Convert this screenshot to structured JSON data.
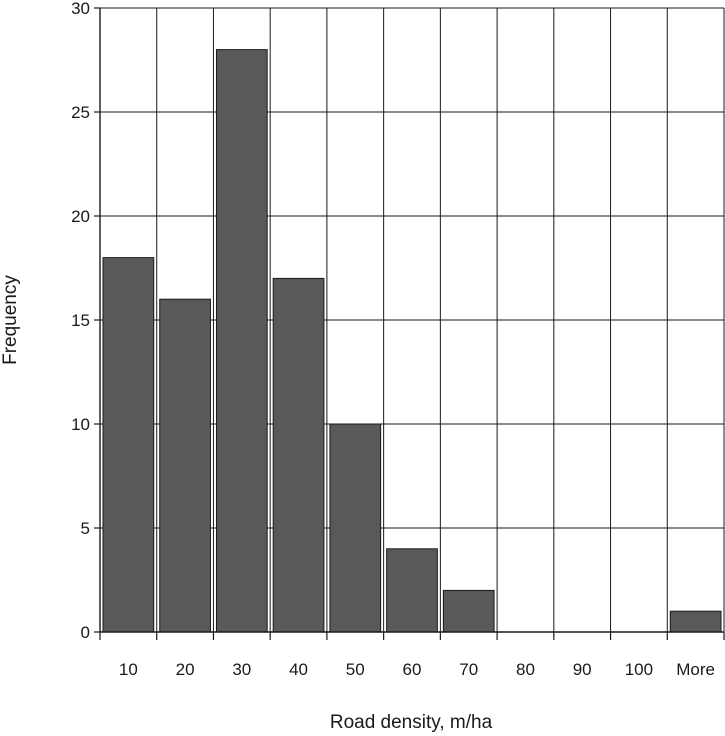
{
  "chart_data": {
    "type": "bar",
    "title": "",
    "xlabel": "Road density, m/ha",
    "ylabel": "Frequency",
    "categories": [
      "10",
      "20",
      "30",
      "40",
      "50",
      "60",
      "70",
      "80",
      "90",
      "100",
      "More"
    ],
    "values": [
      18,
      16,
      28,
      17,
      10,
      4,
      2,
      0,
      0,
      0,
      1
    ],
    "ylim": [
      0,
      30
    ],
    "yticks": [
      0,
      5,
      10,
      15,
      20,
      25,
      30
    ],
    "grid": true,
    "legend": "none",
    "colors": {
      "bar": "#595959",
      "bar_edge": "#1a1a1a",
      "grid": "#1a1a1a"
    }
  }
}
